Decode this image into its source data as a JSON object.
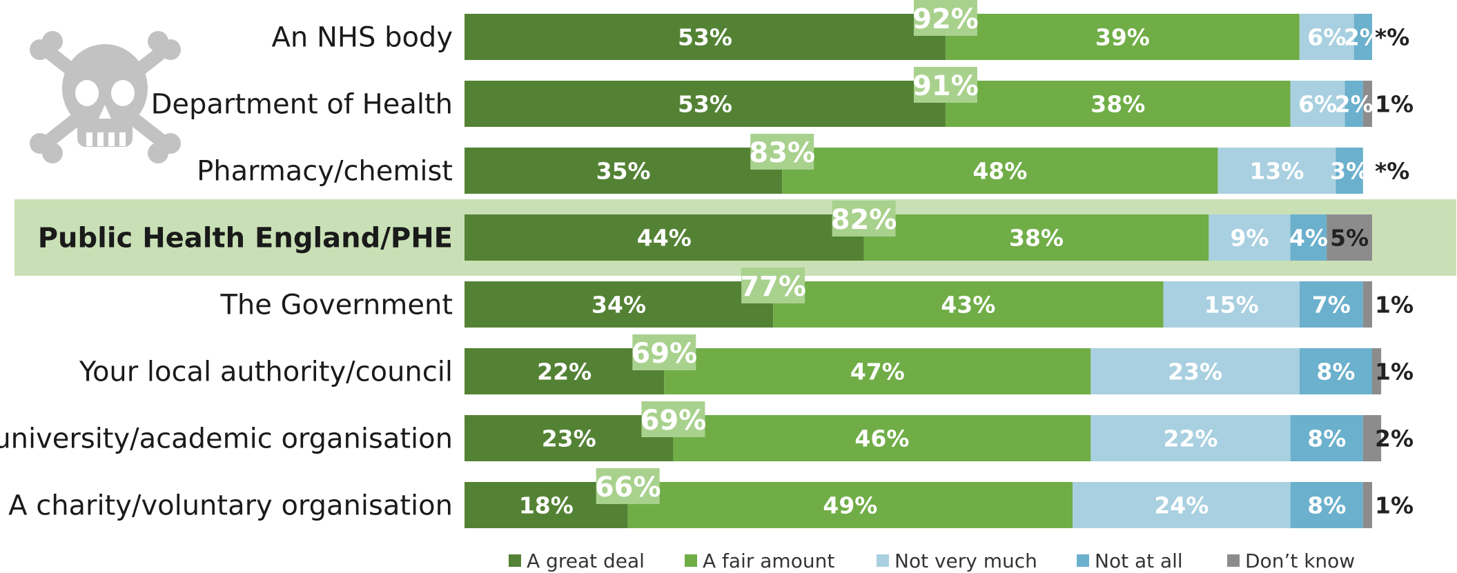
{
  "chart_data": {
    "type": "bar",
    "orientation": "horizontal",
    "stacked": true,
    "categories": [
      "An NHS body",
      "Department of Health",
      "Pharmacy/chemist",
      "Public Health England/PHE",
      "The Government",
      "Your local authority/council",
      "A university/academic organisation",
      "A charity/voluntary organisation"
    ],
    "highlight_category": "Public Health England/PHE",
    "series": [
      {
        "name": "A great deal",
        "color": "#548235",
        "values": [
          53,
          53,
          35,
          44,
          34,
          22,
          23,
          18
        ],
        "labels": [
          "53%",
          "53%",
          "35%",
          "44%",
          "34%",
          "22%",
          "23%",
          "18%"
        ]
      },
      {
        "name": "A fair amount",
        "color": "#70AD47",
        "values": [
          39,
          38,
          48,
          38,
          43,
          47,
          46,
          49
        ],
        "labels": [
          "39%",
          "38%",
          "48%",
          "38%",
          "43%",
          "47%",
          "46%",
          "49%"
        ]
      },
      {
        "name": "Not very much",
        "color": "#A9D0E0",
        "values": [
          6,
          6,
          13,
          9,
          15,
          23,
          22,
          24
        ],
        "labels": [
          "6%",
          "6%",
          "13%",
          "9%",
          "15%",
          "23%",
          "22%",
          "24%"
        ]
      },
      {
        "name": "Not at all",
        "color": "#6BB0CC",
        "values": [
          2,
          2,
          3,
          4,
          7,
          8,
          8,
          8
        ],
        "labels": [
          "2%",
          "2%",
          "3%",
          "4%",
          "7%",
          "8%",
          "8%",
          "8%"
        ]
      },
      {
        "name": "Don’t know",
        "color": "#8C8C8C",
        "values": [
          0,
          1,
          0,
          5,
          1,
          1,
          2,
          1
        ],
        "labels": [
          "*%",
          "1%",
          "*%",
          "5%",
          "1%",
          "1%",
          "2%",
          "1%"
        ]
      }
    ],
    "totals": {
      "values": [
        92,
        91,
        83,
        82,
        77,
        69,
        69,
        66
      ],
      "labels": [
        "92%",
        "91%",
        "83%",
        "82%",
        "77%",
        "69%",
        "69%",
        "66%"
      ]
    },
    "xlim": [
      0,
      100
    ],
    "grid": false,
    "legend": "bottom",
    "decoration_icon": "skull-crossbones-icon"
  }
}
